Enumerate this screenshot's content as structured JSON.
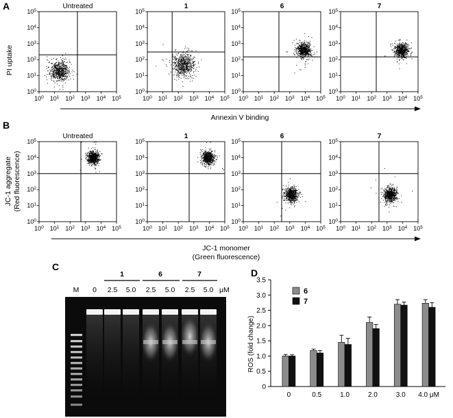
{
  "panels": {
    "A": {
      "letter": "A",
      "titles": [
        "Untreated",
        "1",
        "6",
        "7"
      ],
      "ylabel": [
        "PI uptake"
      ],
      "xlabel": [
        "Annexin V binding"
      ],
      "tick_labels": [
        "10^0",
        "10^1",
        "10^2",
        "10^3",
        "10^4",
        "10^5"
      ],
      "populations": [
        {
          "cx": 20,
          "cy": 20,
          "spread": 0.3
        },
        {
          "cx": 200,
          "cy": 50,
          "spread": 0.35
        },
        {
          "cx": 8000,
          "cy": 400,
          "spread": 0.22
        },
        {
          "cx": 8000,
          "cy": 400,
          "spread": 0.22
        }
      ],
      "gates": [
        {
          "x": 300,
          "y": 200
        },
        {
          "x": 40,
          "y": 300
        },
        {
          "x": 200,
          "y": 150
        },
        {
          "x": 200,
          "y": 150
        }
      ]
    },
    "B": {
      "letter": "B",
      "titles": [
        "Untreated",
        "1",
        "6",
        "7"
      ],
      "ylabel": [
        "JC-1 aggregate",
        "(Red fluorescence)"
      ],
      "xlabel": [
        "JC-1 monomer",
        "(Green fluorescence)"
      ],
      "tick_labels": [
        "10^0",
        "10^1",
        "10^2",
        "10^3",
        "10^4",
        "10^5"
      ],
      "populations": [
        {
          "cx": 3000,
          "cy": 10000,
          "spread": 0.2
        },
        {
          "cx": 8000,
          "cy": 10000,
          "spread": 0.2
        },
        {
          "cx": 1200,
          "cy": 50,
          "spread": 0.22
        },
        {
          "cx": 1500,
          "cy": 50,
          "spread": 0.22
        }
      ],
      "gates": [
        {
          "x": 500,
          "y": 1000
        },
        {
          "x": 500,
          "y": 1000
        },
        {
          "x": 300,
          "y": 1000
        },
        {
          "x": 300,
          "y": 1000
        }
      ]
    },
    "C": {
      "letter": "C",
      "lane_labels": [
        "M",
        "0",
        "2.5",
        "5.0",
        "2.5",
        "5.0",
        "2.5",
        "5.0",
        "μM"
      ],
      "group_labels": [
        "1",
        "6",
        "7"
      ]
    },
    "D": {
      "letter": "D"
    }
  },
  "chart_data": [
    {
      "type": "bar",
      "categories": [
        "0",
        "0.5",
        "1.0",
        "2.0",
        "3.0",
        "4.0 μM"
      ],
      "series": [
        {
          "name": "6",
          "values": [
            1.0,
            1.18,
            1.45,
            2.1,
            2.7,
            2.73
          ],
          "errors": [
            0.05,
            0.05,
            0.23,
            0.18,
            0.15,
            0.12
          ],
          "color": "#8c8c8c"
        },
        {
          "name": "7",
          "values": [
            1.0,
            1.1,
            1.38,
            1.9,
            2.67,
            2.6
          ],
          "errors": [
            0.04,
            0.08,
            0.2,
            0.13,
            0.1,
            0.15
          ],
          "color": "#111111"
        }
      ],
      "xlabel": "",
      "ylabel": "ROS (fold change)",
      "ylim": [
        0,
        3.5
      ],
      "yticks": [
        "0",
        "0.5",
        "1.0",
        "1.5",
        "2.0",
        "2.5",
        "3.0",
        "3.5"
      ],
      "legend": "top-left",
      "grid": false
    }
  ]
}
